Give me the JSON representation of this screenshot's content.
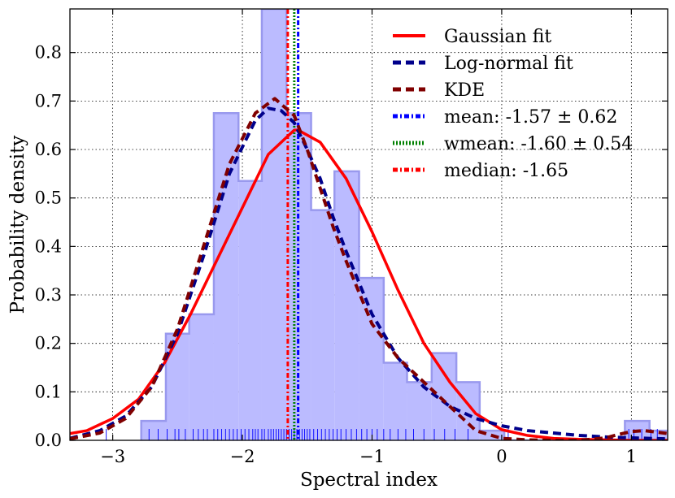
{
  "chart_data": {
    "type": "bar",
    "title": "",
    "xlabel": "Spectral index",
    "ylabel": "Probability density",
    "xlim": [
      -3.33,
      1.28
    ],
    "ylim": [
      0.0,
      0.89
    ],
    "grid": true,
    "legend_position": "top-right",
    "x_ticks": [
      {
        "value": -3,
        "label": "−3"
      },
      {
        "value": -2,
        "label": "−2"
      },
      {
        "value": -1,
        "label": "−1"
      },
      {
        "value": 0,
        "label": "0"
      },
      {
        "value": 1,
        "label": "1"
      }
    ],
    "y_ticks": [
      {
        "value": 0.0,
        "label": "0.0"
      },
      {
        "value": 0.1,
        "label": "0.1"
      },
      {
        "value": 0.2,
        "label": "0.2"
      },
      {
        "value": 0.3,
        "label": "0.3"
      },
      {
        "value": 0.4,
        "label": "0.4"
      },
      {
        "value": 0.5,
        "label": "0.5"
      },
      {
        "value": 0.6,
        "label": "0.6"
      },
      {
        "value": 0.7,
        "label": "0.7"
      },
      {
        "value": 0.8,
        "label": "0.8"
      }
    ],
    "histogram": {
      "color": "#bbbbff",
      "edge_color": "#9999ee",
      "bin_edges": [
        -2.78,
        -2.59,
        -2.41,
        -2.22,
        -2.03,
        -1.85,
        -1.66,
        -1.47,
        -1.29,
        -1.1,
        -0.91,
        -0.73,
        -0.54,
        -0.35,
        -0.17,
        0.02,
        0.21,
        0.39,
        0.58,
        0.77,
        0.95,
        1.14,
        1.33
      ],
      "densities": [
        0.04,
        0.22,
        0.26,
        0.675,
        0.535,
        0.89,
        0.675,
        0.475,
        0.555,
        0.335,
        0.16,
        0.12,
        0.18,
        0.12,
        0.02,
        0.0,
        0.0,
        0.0,
        0.0,
        0.0,
        0.04,
        0.02
      ]
    },
    "series": [
      {
        "name": "Gaussian fit",
        "color": "#ff0000",
        "style": "solid",
        "x": [
          -3.33,
          -3.2,
          -3.0,
          -2.8,
          -2.6,
          -2.4,
          -2.2,
          -2.0,
          -1.8,
          -1.6,
          -1.57,
          -1.4,
          -1.2,
          -1.0,
          -0.8,
          -0.6,
          -0.4,
          -0.2,
          0.0,
          0.2,
          0.4,
          0.6,
          0.8,
          1.0,
          1.28
        ],
        "y": [
          0.014,
          0.02,
          0.045,
          0.085,
          0.16,
          0.26,
          0.37,
          0.48,
          0.59,
          0.64,
          0.64,
          0.615,
          0.54,
          0.43,
          0.31,
          0.2,
          0.12,
          0.055,
          0.022,
          0.01,
          0.004,
          0.002,
          0.001,
          0.0,
          0.0
        ]
      },
      {
        "name": "Log-normal fit",
        "color": "#00008b",
        "style": "dashed",
        "x": [
          -3.33,
          -3.1,
          -2.9,
          -2.7,
          -2.5,
          -2.3,
          -2.1,
          -1.9,
          -1.8,
          -1.7,
          -1.6,
          -1.5,
          -1.4,
          -1.3,
          -1.2,
          -1.0,
          -0.8,
          -0.6,
          -0.4,
          -0.2,
          0.0,
          0.2,
          0.4,
          0.6,
          0.8,
          1.0,
          1.28
        ],
        "y": [
          0.004,
          0.02,
          0.05,
          0.11,
          0.22,
          0.38,
          0.55,
          0.66,
          0.685,
          0.68,
          0.655,
          0.6,
          0.54,
          0.46,
          0.39,
          0.26,
          0.17,
          0.11,
          0.07,
          0.045,
          0.03,
          0.02,
          0.015,
          0.01,
          0.007,
          0.005,
          0.003
        ]
      },
      {
        "name": "KDE",
        "color": "#800000",
        "style": "dashed",
        "x": [
          -3.33,
          -3.1,
          -2.9,
          -2.7,
          -2.5,
          -2.3,
          -2.1,
          -1.9,
          -1.75,
          -1.6,
          -1.5,
          -1.4,
          -1.3,
          -1.2,
          -1.0,
          -0.8,
          -0.6,
          -0.4,
          -0.2,
          0.0,
          0.2,
          0.4,
          0.6,
          0.8,
          0.9,
          1.0,
          1.1,
          1.28
        ],
        "y": [
          0.003,
          0.015,
          0.045,
          0.11,
          0.23,
          0.4,
          0.57,
          0.675,
          0.705,
          0.67,
          0.6,
          0.52,
          0.44,
          0.37,
          0.24,
          0.17,
          0.12,
          0.07,
          0.02,
          0.004,
          0.001,
          0.0,
          0.0,
          0.005,
          0.012,
          0.018,
          0.02,
          0.014
        ]
      },
      {
        "name": "mean: -1.57 ± 0.62",
        "color": "#0000ff",
        "style": "dashdot",
        "vertical_line": -1.57
      },
      {
        "name": "wmean: -1.60 ± 0.54",
        "color": "#008000",
        "style": "dotted",
        "vertical_line": -1.6
      },
      {
        "name": "median: -1.65",
        "color": "#ff0000",
        "style": "dashdot",
        "vertical_line": -1.65
      }
    ],
    "rug": {
      "color": "#0000ff",
      "values": [
        -3.05,
        -2.72,
        -2.65,
        -2.58,
        -2.52,
        -2.49,
        -2.44,
        -2.38,
        -2.34,
        -2.3,
        -2.27,
        -2.22,
        -2.19,
        -2.16,
        -2.13,
        -2.1,
        -2.07,
        -2.04,
        -2.01,
        -1.98,
        -1.95,
        -1.92,
        -1.9,
        -1.88,
        -1.85,
        -1.83,
        -1.8,
        -1.78,
        -1.76,
        -1.74,
        -1.72,
        -1.7,
        -1.68,
        -1.66,
        -1.64,
        -1.62,
        -1.6,
        -1.58,
        -1.56,
        -1.54,
        -1.52,
        -1.5,
        -1.48,
        -1.45,
        -1.42,
        -1.39,
        -1.36,
        -1.33,
        -1.3,
        -1.27,
        -1.24,
        -1.2,
        -1.16,
        -1.12,
        -1.08,
        -1.04,
        -1.0,
        -0.96,
        -0.91,
        -0.86,
        -0.8,
        -0.74,
        -0.68,
        -0.6,
        -0.52,
        -0.44,
        -0.36,
        -0.26,
        0.05,
        0.98,
        1.02,
        1.08,
        1.15,
        1.2
      ]
    }
  }
}
